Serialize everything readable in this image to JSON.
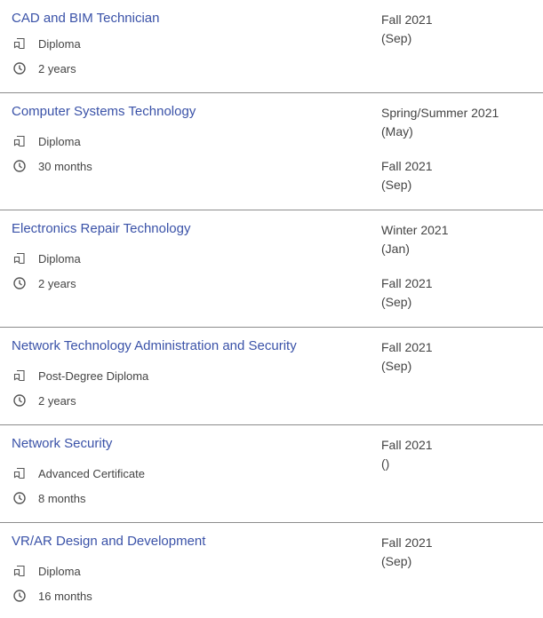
{
  "programs": [
    {
      "title": "CAD and BIM Technician",
      "credential": "Diploma",
      "duration": "2 years",
      "intakes": [
        {
          "term": "Fall 2021",
          "month": "(Sep)"
        }
      ]
    },
    {
      "title": "Computer Systems Technology",
      "credential": "Diploma",
      "duration": "30 months",
      "intakes": [
        {
          "term": "Spring/Summer 2021",
          "month": "(May)"
        },
        {
          "term": "Fall 2021",
          "month": "(Sep)"
        }
      ]
    },
    {
      "title": "Electronics Repair Technology",
      "credential": "Diploma",
      "duration": "2 years",
      "intakes": [
        {
          "term": "Winter 2021",
          "month": "(Jan)"
        },
        {
          "term": "Fall 2021",
          "month": "(Sep)"
        }
      ]
    },
    {
      "title": "Network Technology Administration and Security",
      "credential": "Post-Degree Diploma",
      "duration": "2 years",
      "intakes": [
        {
          "term": "Fall 2021",
          "month": "(Sep)"
        }
      ]
    },
    {
      "title": "Network Security",
      "credential": "Advanced Certificate",
      "duration": "8 months",
      "intakes": [
        {
          "term": "Fall 2021",
          "month": "()"
        }
      ]
    },
    {
      "title": "VR/AR Design and Development",
      "credential": "Diploma",
      "duration": "16 months",
      "intakes": [
        {
          "term": "Fall 2021",
          "month": "(Sep)"
        }
      ]
    }
  ],
  "icons": {
    "credential": "certificate-icon",
    "duration": "clock-icon"
  },
  "colors": {
    "link": "#3a52a8",
    "divider": "#8c8c8c"
  }
}
